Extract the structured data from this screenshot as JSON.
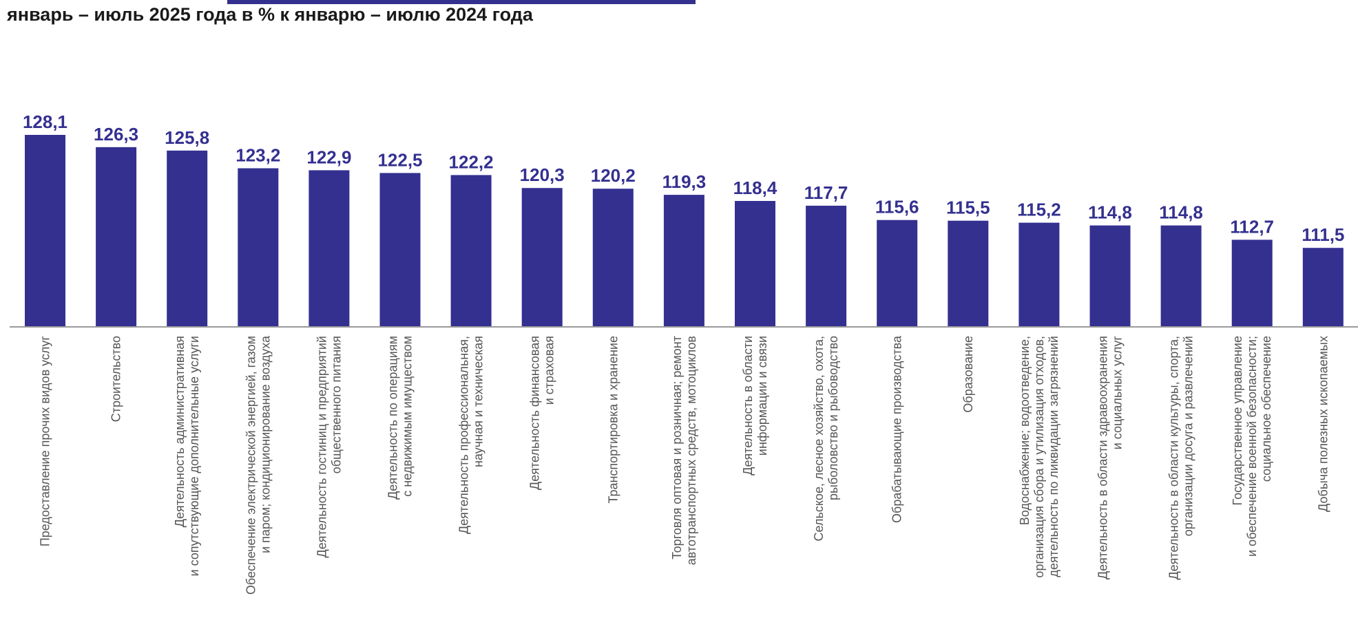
{
  "subtitle": "январь – июль 2025 года в % к январю – июлю 2024 года",
  "colors": {
    "bar": "#343090",
    "axis": "#9a9a9a",
    "label": "#555555"
  },
  "chart_data": {
    "type": "bar",
    "title": "январь – июль 2025 года в % к январю – июлю 2024 года",
    "ylim": [
      100,
      130
    ],
    "categories": [
      [
        "Предоставление прочих видов услуг"
      ],
      [
        "Строительство"
      ],
      [
        "Деятельность административная",
        "и сопутствующие дополнительные услуги"
      ],
      [
        "Обеспечение электрической энергией, газом",
        "и паром; кондиционирование воздуха"
      ],
      [
        "Деятельность гостиниц и предприятий",
        "общественного питания"
      ],
      [
        "Деятельность по операциям",
        "с недвижимым имуществом"
      ],
      [
        "Деятельность профессиональная,",
        "научная и техническая"
      ],
      [
        "Деятельность финансовая",
        "и страховая"
      ],
      [
        "Транспортировка и хранение"
      ],
      [
        "Торговля оптовая и розничная; ремонт",
        "автотранспортных средств, мотоциклов"
      ],
      [
        "Деятельность в области",
        "информации и связи"
      ],
      [
        "Сельское, лесное хозяйство, охота,",
        "рыболовство и рыбоводство"
      ],
      [
        "Обрабатывающие производства"
      ],
      [
        "Образование"
      ],
      [
        "Водоснабжение; водоотведение,",
        "организация сбора и утилизация отходов,",
        "деятельность по ликвидации загрязнений"
      ],
      [
        "Деятельность в области здравоохранения",
        "и социальных услуг"
      ],
      [
        "Деятельность в области культуры, спорта,",
        "организации досуга и развлечений"
      ],
      [
        "Государственное управление",
        "и обеспечение военной безопасности;",
        "социальное обеспечение"
      ],
      [
        "Добыча полезных ископаемых"
      ]
    ],
    "values": [
      128.1,
      126.3,
      125.8,
      123.2,
      122.9,
      122.5,
      122.2,
      120.3,
      120.2,
      119.3,
      118.4,
      117.7,
      115.6,
      115.5,
      115.2,
      114.8,
      114.8,
      112.7,
      111.5
    ],
    "value_labels": [
      "128,1",
      "126,3",
      "125,8",
      "123,2",
      "122,9",
      "122,5",
      "122,2",
      "120,3",
      "120,2",
      "119,3",
      "118,4",
      "117,7",
      "115,6",
      "115,5",
      "115,2",
      "114,8",
      "114,8",
      "112,7",
      "111,5"
    ]
  }
}
